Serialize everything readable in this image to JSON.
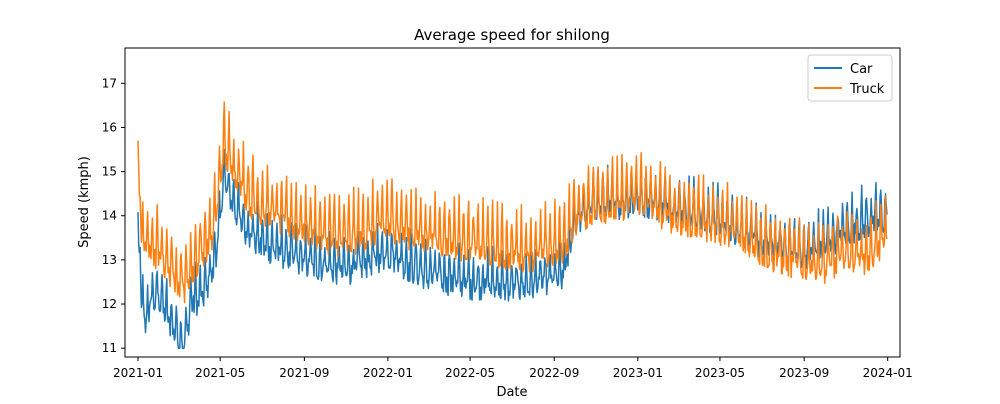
{
  "chart_data": {
    "type": "line",
    "title": "Average speed for shilong",
    "xlabel": "Date",
    "ylabel": "Speed (kmph)",
    "x_ticks": [
      "2021-01",
      "2021-05",
      "2021-09",
      "2022-01",
      "2022-05",
      "2022-09",
      "2023-01",
      "2023-05",
      "2023-09",
      "2024-01"
    ],
    "y_ticks": [
      "11",
      "12",
      "13",
      "14",
      "15",
      "16",
      "17"
    ],
    "xlim": [
      "2020-12-13",
      "2024-01-19"
    ],
    "ylim": [
      10.8,
      17.8
    ],
    "grid": false,
    "legend_position": "top-right",
    "x_granularity": "daily",
    "series": [
      {
        "name": "Car",
        "color": "#1f77b4",
        "keypoints": [
          [
            "2021-01-01",
            13.4
          ],
          [
            "2021-01-04",
            13.2
          ],
          [
            "2021-01-06",
            12.0
          ],
          [
            "2021-01-12",
            11.6
          ],
          [
            "2021-01-20",
            12.1
          ],
          [
            "2021-02-01",
            12.2
          ],
          [
            "2021-02-15",
            11.7
          ],
          [
            "2021-03-01",
            11.3
          ],
          [
            "2021-03-10",
            11.1
          ],
          [
            "2021-03-20",
            12.1
          ],
          [
            "2021-04-05",
            12.2
          ],
          [
            "2021-04-20",
            12.8
          ],
          [
            "2021-05-01",
            13.8
          ],
          [
            "2021-05-05",
            14.9
          ],
          [
            "2021-05-15",
            14.5
          ],
          [
            "2021-06-01",
            13.9
          ],
          [
            "2021-06-15",
            13.6
          ],
          [
            "2021-07-01",
            13.4
          ],
          [
            "2021-08-01",
            13.2
          ],
          [
            "2021-09-01",
            13.0
          ],
          [
            "2021-10-01",
            12.9
          ],
          [
            "2021-11-01",
            12.8
          ],
          [
            "2021-12-01",
            13.0
          ],
          [
            "2022-01-01",
            13.2
          ],
          [
            "2022-02-01",
            12.9
          ],
          [
            "2022-03-01",
            12.7
          ],
          [
            "2022-04-01",
            12.6
          ],
          [
            "2022-05-01",
            12.5
          ],
          [
            "2022-06-01",
            12.5
          ],
          [
            "2022-07-01",
            12.4
          ],
          [
            "2022-08-01",
            12.5
          ],
          [
            "2022-09-01",
            12.6
          ],
          [
            "2022-09-15",
            12.7
          ],
          [
            "2022-10-01",
            13.9
          ],
          [
            "2022-11-01",
            14.3
          ],
          [
            "2022-12-01",
            14.3
          ],
          [
            "2023-01-01",
            14.4
          ],
          [
            "2023-02-01",
            14.3
          ],
          [
            "2023-03-01",
            14.2
          ],
          [
            "2023-04-01",
            14.0
          ],
          [
            "2023-05-01",
            13.9
          ],
          [
            "2023-06-01",
            13.7
          ],
          [
            "2023-07-01",
            13.4
          ],
          [
            "2023-08-01",
            13.3
          ],
          [
            "2023-09-01",
            13.2
          ],
          [
            "2023-10-01",
            13.4
          ],
          [
            "2023-11-01",
            13.7
          ],
          [
            "2023-12-01",
            13.9
          ],
          [
            "2023-12-31",
            14.0
          ]
        ]
      },
      {
        "name": "Truck",
        "color": "#ff7f0e",
        "keypoints": [
          [
            "2021-01-01",
            15.1
          ],
          [
            "2021-01-04",
            14.5
          ],
          [
            "2021-01-06",
            13.6
          ],
          [
            "2021-01-12",
            13.4
          ],
          [
            "2021-01-20",
            13.3
          ],
          [
            "2021-02-01",
            13.2
          ],
          [
            "2021-02-15",
            12.9
          ],
          [
            "2021-03-01",
            12.6
          ],
          [
            "2021-03-10",
            12.5
          ],
          [
            "2021-03-20",
            12.8
          ],
          [
            "2021-04-05",
            13.3
          ],
          [
            "2021-04-20",
            13.6
          ],
          [
            "2021-05-01",
            14.8
          ],
          [
            "2021-05-05",
            15.6
          ],
          [
            "2021-05-15",
            15.3
          ],
          [
            "2021-06-01",
            14.8
          ],
          [
            "2021-06-15",
            14.4
          ],
          [
            "2021-07-01",
            14.2
          ],
          [
            "2021-08-01",
            14.0
          ],
          [
            "2021-09-01",
            13.8
          ],
          [
            "2021-10-01",
            13.6
          ],
          [
            "2021-11-01",
            13.5
          ],
          [
            "2021-12-01",
            13.7
          ],
          [
            "2022-01-01",
            13.9
          ],
          [
            "2022-02-01",
            13.7
          ],
          [
            "2022-03-01",
            13.6
          ],
          [
            "2022-04-01",
            13.5
          ],
          [
            "2022-05-01",
            13.4
          ],
          [
            "2022-06-01",
            13.3
          ],
          [
            "2022-07-01",
            13.2
          ],
          [
            "2022-08-01",
            13.2
          ],
          [
            "2022-09-01",
            13.3
          ],
          [
            "2022-09-15",
            13.4
          ],
          [
            "2022-10-01",
            14.0
          ],
          [
            "2022-11-01",
            14.3
          ],
          [
            "2022-12-01",
            14.3
          ],
          [
            "2023-01-01",
            14.5
          ],
          [
            "2023-02-01",
            14.2
          ],
          [
            "2023-03-01",
            14.0
          ],
          [
            "2023-04-01",
            13.9
          ],
          [
            "2023-05-01",
            13.8
          ],
          [
            "2023-06-01",
            13.6
          ],
          [
            "2023-07-01",
            13.3
          ],
          [
            "2023-08-01",
            13.1
          ],
          [
            "2023-09-01",
            13.0
          ],
          [
            "2023-10-01",
            12.9
          ],
          [
            "2023-11-01",
            13.2
          ],
          [
            "2023-12-01",
            13.1
          ],
          [
            "2023-12-31",
            13.6
          ]
        ]
      }
    ]
  }
}
